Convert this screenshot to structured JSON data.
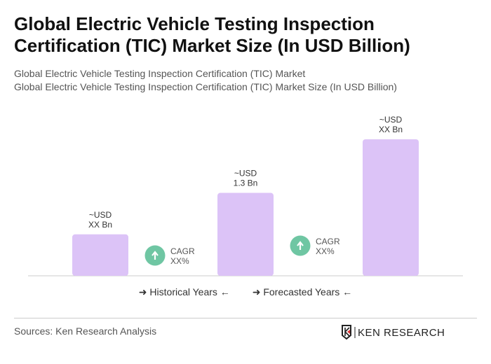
{
  "title": "Global Electric Vehicle Testing Inspection Certification (TIC) Market Size (In USD Billion)",
  "subtitle1": "Global Electric Vehicle Testing Inspection Certification (TIC) Market",
  "subtitle2": "Global Electric Vehicle Testing Inspection Certification (TIC) Market Size (In USD Billion)",
  "chart_data": {
    "type": "bar",
    "categories": [
      "",
      "",
      ""
    ],
    "values": [
      0.65,
      1.3,
      2.14
    ],
    "data_labels": [
      [
        "~USD",
        "XX Bn"
      ],
      [
        "~USD",
        "1.3 Bn"
      ],
      [
        "~USD",
        "XX Bn"
      ]
    ],
    "cagr": [
      [
        "CAGR",
        "XX%"
      ],
      [
        "CAGR",
        "XX%"
      ]
    ],
    "bar_color": "#dcc3f7",
    "cagr_color": "#6fc6a3",
    "grid": false
  },
  "legend": {
    "historical": "Historical Years",
    "forecasted": "Forecasted Years"
  },
  "sources": "Sources: Ken Research Analysis",
  "logo_text": "KEN RESEARCH"
}
